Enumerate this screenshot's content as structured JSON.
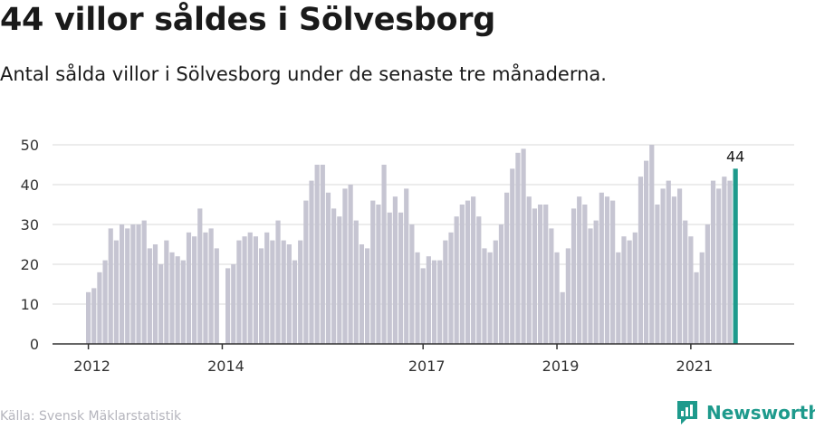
{
  "header": {
    "title": "44 villor såldes i Sölvesborg",
    "subtitle": "Antal sålda villor i Sölvesborg under de senaste tre månaderna."
  },
  "footer": {
    "source": "Källa: Svensk Mäklarstatistik",
    "brand": "Newsworthy"
  },
  "colors": {
    "bar": "#c6c5d2",
    "highlight": "#1e9a8c",
    "grid": "#d9d9d9",
    "axis": "#333333"
  },
  "icons": {
    "brand": "newsworthy-logo-icon"
  },
  "chart_data": {
    "type": "bar",
    "title": "",
    "xlabel": "",
    "ylabel": "",
    "ylim": [
      0,
      50
    ],
    "yticks": [
      0,
      10,
      20,
      30,
      40,
      50
    ],
    "x_tick_labels": [
      {
        "index": 0,
        "label": "2012"
      },
      {
        "index": 24,
        "label": "2014"
      },
      {
        "index": 60,
        "label": "2017"
      },
      {
        "index": 84,
        "label": "2019"
      },
      {
        "index": 108,
        "label": "2021"
      }
    ],
    "values": [
      13,
      14,
      18,
      21,
      29,
      26,
      30,
      29,
      30,
      30,
      31,
      24,
      25,
      20,
      26,
      23,
      22,
      21,
      28,
      27,
      34,
      28,
      29,
      24,
      null,
      19,
      20,
      26,
      27,
      28,
      27,
      24,
      28,
      26,
      31,
      26,
      25,
      21,
      26,
      36,
      41,
      45,
      45,
      38,
      34,
      32,
      39,
      40,
      31,
      25,
      24,
      36,
      35,
      45,
      33,
      37,
      33,
      39,
      30,
      23,
      19,
      22,
      21,
      21,
      26,
      28,
      32,
      35,
      36,
      37,
      32,
      24,
      23,
      26,
      30,
      38,
      44,
      48,
      49,
      37,
      34,
      35,
      35,
      29,
      23,
      13,
      24,
      34,
      37,
      35,
      29,
      31,
      38,
      37,
      36,
      23,
      27,
      26,
      28,
      42,
      46,
      50,
      35,
      39,
      41,
      37,
      39,
      31,
      27,
      18,
      23,
      30,
      41,
      39,
      42,
      41,
      44
    ],
    "highlight": {
      "index": 116,
      "value": 44,
      "label": "44"
    }
  }
}
